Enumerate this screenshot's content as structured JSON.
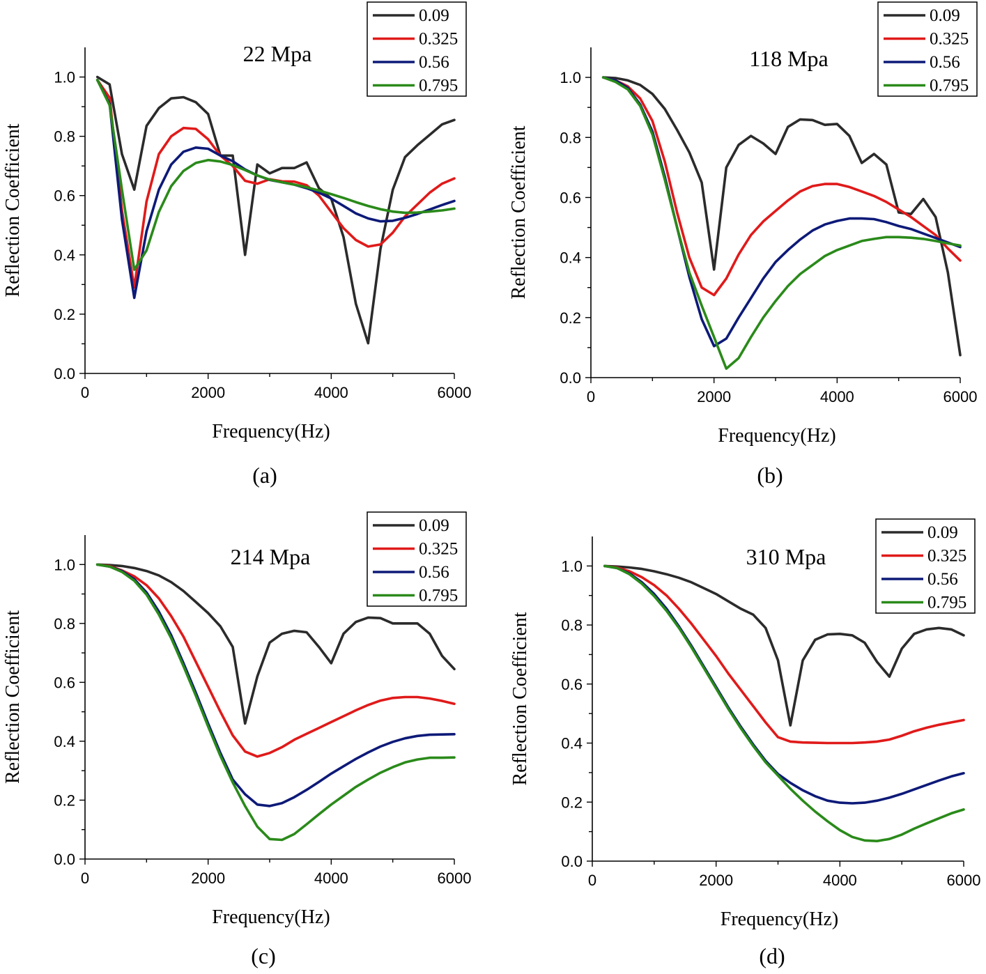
{
  "series_names": [
    "0.09",
    "0.325",
    "0.56",
    "0.795"
  ],
  "series_colors": [
    "#2b2b2b",
    "#e01a1a",
    "#0d1a78",
    "#2a8a1a"
  ],
  "chart_data": [
    {
      "type": "line",
      "id": "a",
      "title": "22 Mpa",
      "caption": "(a)",
      "xlabel": "Frequency(Hz)",
      "ylabel": "Reflection Coefficient",
      "xlim": [
        0,
        6000
      ],
      "ylim": [
        0,
        1.1
      ],
      "xticks": [
        "0",
        "2000",
        "4000",
        "6000"
      ],
      "yticks": [
        "0.0",
        "0.2",
        "0.4",
        "0.6",
        "0.8",
        "1.0"
      ],
      "x": [
        200,
        400,
        600,
        800,
        1000,
        1200,
        1400,
        1600,
        1800,
        2000,
        2200,
        2400,
        2600,
        2800,
        3000,
        3200,
        3400,
        3600,
        3800,
        4000,
        4200,
        4400,
        4600,
        4800,
        5000,
        5200,
        5400,
        5600,
        5800,
        6000
      ],
      "series": [
        {
          "name": "0.09",
          "values": [
            1.0,
            0.975,
            0.74,
            0.62,
            0.835,
            0.895,
            0.928,
            0.932,
            0.915,
            0.875,
            0.735,
            0.735,
            0.4,
            0.705,
            0.675,
            0.693,
            0.693,
            0.712,
            0.625,
            0.59,
            0.46,
            0.235,
            0.102,
            0.42,
            0.62,
            0.73,
            0.77,
            0.805,
            0.84,
            0.855
          ]
        },
        {
          "name": "0.325",
          "values": [
            0.99,
            0.93,
            0.55,
            0.29,
            0.58,
            0.74,
            0.8,
            0.828,
            0.825,
            0.79,
            0.735,
            0.7,
            0.65,
            0.64,
            0.655,
            0.648,
            0.647,
            0.635,
            0.6,
            0.545,
            0.49,
            0.45,
            0.428,
            0.435,
            0.475,
            0.53,
            0.57,
            0.61,
            0.64,
            0.658
          ]
        },
        {
          "name": "0.56",
          "values": [
            0.99,
            0.91,
            0.52,
            0.255,
            0.48,
            0.62,
            0.705,
            0.748,
            0.762,
            0.758,
            0.735,
            0.716,
            0.688,
            0.668,
            0.653,
            0.645,
            0.637,
            0.625,
            0.61,
            0.59,
            0.565,
            0.54,
            0.523,
            0.513,
            0.515,
            0.525,
            0.538,
            0.553,
            0.568,
            0.582
          ]
        },
        {
          "name": "0.795",
          "values": [
            0.99,
            0.905,
            0.62,
            0.35,
            0.415,
            0.545,
            0.632,
            0.683,
            0.71,
            0.72,
            0.715,
            0.703,
            0.686,
            0.668,
            0.654,
            0.645,
            0.637,
            0.628,
            0.617,
            0.605,
            0.592,
            0.578,
            0.565,
            0.554,
            0.546,
            0.542,
            0.543,
            0.546,
            0.55,
            0.556
          ]
        }
      ]
    },
    {
      "type": "line",
      "id": "b",
      "title": "118 Mpa",
      "caption": "(b)",
      "xlabel": "Frequency(Hz)",
      "ylabel": "Reflection Coefficient",
      "xlim": [
        0,
        6000
      ],
      "ylim": [
        0,
        1.1
      ],
      "xticks": [
        "0",
        "2000",
        "4000",
        "6000"
      ],
      "yticks": [
        "0.0",
        "0.2",
        "0.4",
        "0.6",
        "0.8",
        "1.0"
      ],
      "x": [
        200,
        400,
        600,
        800,
        1000,
        1200,
        1400,
        1600,
        1800,
        2000,
        2200,
        2400,
        2600,
        2800,
        3000,
        3200,
        3400,
        3600,
        3800,
        4000,
        4200,
        4400,
        4600,
        4800,
        5000,
        5200,
        5400,
        5600,
        5800,
        6000
      ],
      "series": [
        {
          "name": "0.09",
          "values": [
            1.0,
            0.998,
            0.99,
            0.975,
            0.945,
            0.895,
            0.825,
            0.75,
            0.65,
            0.36,
            0.7,
            0.775,
            0.805,
            0.78,
            0.745,
            0.835,
            0.86,
            0.858,
            0.842,
            0.845,
            0.805,
            0.715,
            0.745,
            0.71,
            0.55,
            0.545,
            0.595,
            0.535,
            0.35,
            0.075
          ]
        },
        {
          "name": "0.325",
          "values": [
            1.0,
            0.99,
            0.97,
            0.93,
            0.855,
            0.72,
            0.55,
            0.4,
            0.3,
            0.275,
            0.33,
            0.41,
            0.475,
            0.52,
            0.555,
            0.59,
            0.62,
            0.638,
            0.645,
            0.645,
            0.635,
            0.62,
            0.605,
            0.585,
            0.56,
            0.535,
            0.505,
            0.475,
            0.43,
            0.39
          ]
        },
        {
          "name": "0.56",
          "values": [
            1.0,
            0.99,
            0.965,
            0.91,
            0.82,
            0.67,
            0.5,
            0.335,
            0.195,
            0.105,
            0.13,
            0.2,
            0.265,
            0.33,
            0.385,
            0.425,
            0.46,
            0.49,
            0.51,
            0.522,
            0.53,
            0.53,
            0.528,
            0.518,
            0.505,
            0.495,
            0.48,
            0.465,
            0.45,
            0.435
          ]
        },
        {
          "name": "0.795",
          "values": [
            1.0,
            0.985,
            0.96,
            0.905,
            0.81,
            0.66,
            0.5,
            0.35,
            0.24,
            0.135,
            0.03,
            0.065,
            0.135,
            0.2,
            0.255,
            0.305,
            0.345,
            0.375,
            0.405,
            0.425,
            0.44,
            0.455,
            0.462,
            0.468,
            0.468,
            0.466,
            0.462,
            0.455,
            0.447,
            0.44
          ]
        }
      ]
    },
    {
      "type": "line",
      "id": "c",
      "title": "214 Mpa",
      "caption": "(c)",
      "xlabel": "Frequency(Hz)",
      "ylabel": "Reflection Coefficient",
      "xlim": [
        0,
        6000
      ],
      "ylim": [
        0,
        1.1
      ],
      "xticks": [
        "0",
        "2000",
        "4000",
        "6000"
      ],
      "yticks": [
        "0.0",
        "0.2",
        "0.4",
        "0.6",
        "0.8",
        "1.0"
      ],
      "x": [
        200,
        400,
        600,
        800,
        1000,
        1200,
        1400,
        1600,
        1800,
        2000,
        2200,
        2400,
        2600,
        2800,
        3000,
        3200,
        3400,
        3600,
        3800,
        4000,
        4200,
        4400,
        4600,
        4800,
        5000,
        5200,
        5400,
        5600,
        5800,
        6000
      ],
      "series": [
        {
          "name": "0.09",
          "values": [
            1.0,
            0.998,
            0.995,
            0.988,
            0.978,
            0.963,
            0.94,
            0.91,
            0.873,
            0.835,
            0.79,
            0.72,
            0.46,
            0.62,
            0.735,
            0.765,
            0.775,
            0.77,
            0.72,
            0.665,
            0.765,
            0.805,
            0.82,
            0.818,
            0.8,
            0.8,
            0.8,
            0.765,
            0.69,
            0.645
          ]
        },
        {
          "name": "0.325",
          "values": [
            1.0,
            0.995,
            0.98,
            0.96,
            0.93,
            0.885,
            0.825,
            0.755,
            0.67,
            0.585,
            0.5,
            0.42,
            0.365,
            0.348,
            0.36,
            0.38,
            0.405,
            0.425,
            0.445,
            0.465,
            0.485,
            0.505,
            0.523,
            0.538,
            0.547,
            0.55,
            0.55,
            0.545,
            0.537,
            0.527
          ]
        },
        {
          "name": "0.56",
          "values": [
            1.0,
            0.993,
            0.978,
            0.95,
            0.905,
            0.84,
            0.76,
            0.665,
            0.565,
            0.46,
            0.36,
            0.27,
            0.22,
            0.185,
            0.18,
            0.19,
            0.21,
            0.235,
            0.262,
            0.29,
            0.315,
            0.34,
            0.362,
            0.382,
            0.398,
            0.41,
            0.418,
            0.422,
            0.423,
            0.424
          ]
        },
        {
          "name": "0.795",
          "values": [
            1.0,
            0.993,
            0.975,
            0.945,
            0.898,
            0.83,
            0.75,
            0.655,
            0.555,
            0.45,
            0.35,
            0.26,
            0.18,
            0.11,
            0.068,
            0.065,
            0.085,
            0.118,
            0.152,
            0.185,
            0.215,
            0.245,
            0.27,
            0.293,
            0.312,
            0.328,
            0.338,
            0.344,
            0.344,
            0.345
          ]
        }
      ]
    },
    {
      "type": "line",
      "id": "d",
      "title": "310 Mpa",
      "caption": "(d)",
      "xlabel": "Frequency(Hz)",
      "ylabel": "Reflection Coefficient",
      "xlim": [
        0,
        6000
      ],
      "ylim": [
        0,
        1.1
      ],
      "xticks": [
        "0",
        "2000",
        "4000",
        "6000"
      ],
      "yticks": [
        "0.0",
        "0.2",
        "0.4",
        "0.6",
        "0.8",
        "1.0"
      ],
      "x": [
        200,
        400,
        600,
        800,
        1000,
        1200,
        1400,
        1600,
        1800,
        2000,
        2200,
        2400,
        2600,
        2800,
        3000,
        3200,
        3400,
        3600,
        3800,
        4000,
        4200,
        4400,
        4600,
        4800,
        5000,
        5200,
        5400,
        5600,
        5800,
        6000
      ],
      "series": [
        {
          "name": "0.09",
          "values": [
            1.0,
            0.998,
            0.995,
            0.99,
            0.982,
            0.972,
            0.96,
            0.945,
            0.925,
            0.905,
            0.88,
            0.855,
            0.835,
            0.79,
            0.68,
            0.46,
            0.68,
            0.75,
            0.768,
            0.77,
            0.765,
            0.74,
            0.675,
            0.625,
            0.72,
            0.77,
            0.785,
            0.79,
            0.785,
            0.765
          ]
        },
        {
          "name": "0.325",
          "values": [
            1.0,
            0.995,
            0.982,
            0.962,
            0.935,
            0.9,
            0.855,
            0.805,
            0.75,
            0.695,
            0.635,
            0.58,
            0.525,
            0.47,
            0.42,
            0.405,
            0.402,
            0.401,
            0.4,
            0.4,
            0.4,
            0.402,
            0.405,
            0.412,
            0.425,
            0.44,
            0.452,
            0.462,
            0.47,
            0.478
          ]
        },
        {
          "name": "0.56",
          "values": [
            1.0,
            0.993,
            0.975,
            0.945,
            0.905,
            0.855,
            0.795,
            0.73,
            0.66,
            0.59,
            0.52,
            0.455,
            0.395,
            0.34,
            0.295,
            0.265,
            0.24,
            0.22,
            0.205,
            0.198,
            0.196,
            0.198,
            0.205,
            0.215,
            0.228,
            0.243,
            0.258,
            0.273,
            0.287,
            0.298
          ]
        },
        {
          "name": "0.795",
          "values": [
            1.0,
            0.993,
            0.972,
            0.94,
            0.898,
            0.848,
            0.79,
            0.725,
            0.655,
            0.585,
            0.515,
            0.45,
            0.39,
            0.335,
            0.29,
            0.245,
            0.205,
            0.168,
            0.135,
            0.105,
            0.082,
            0.07,
            0.068,
            0.075,
            0.09,
            0.11,
            0.128,
            0.145,
            0.162,
            0.175
          ]
        }
      ]
    }
  ]
}
